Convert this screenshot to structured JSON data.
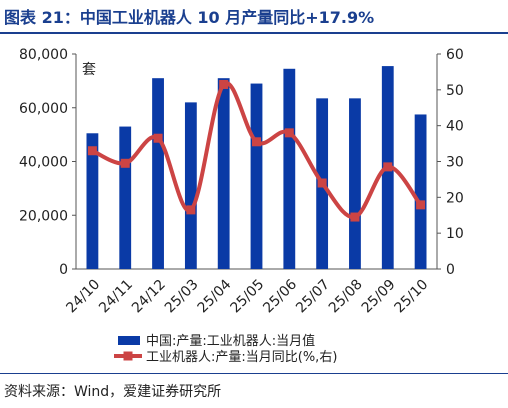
{
  "header": {
    "title": "图表 21：中国工业机器人 10 月产量同比+17.9%"
  },
  "footer": {
    "source": "资料来源：Wind，爱建证券研究所"
  },
  "chart_data": {
    "type": "bar",
    "unit_label": "套",
    "categories": [
      "24/10",
      "24/11",
      "24/12",
      "25/03",
      "25/04",
      "25/05",
      "25/06",
      "25/07",
      "25/08",
      "25/09",
      "25/10"
    ],
    "y_left": {
      "lim": [
        0,
        80000
      ],
      "ticks": [
        "0",
        "20,000",
        "40,000",
        "60,000",
        "80,000"
      ],
      "tick_values": [
        0,
        20000,
        40000,
        60000,
        80000
      ]
    },
    "y_right": {
      "lim": [
        0,
        60
      ],
      "ticks": [
        "0",
        "10",
        "20",
        "30",
        "40",
        "50",
        "60"
      ],
      "tick_values": [
        0,
        10,
        20,
        30,
        40,
        50,
        60
      ]
    },
    "series": [
      {
        "name": "中国:产量:工业机器人:当月值",
        "kind": "bar",
        "axis": "left",
        "color": "#0a3aa6",
        "values": [
          50500,
          53000,
          71000,
          62000,
          71000,
          69000,
          74500,
          63500,
          63500,
          75500,
          57500
        ]
      },
      {
        "name": "工业机器人:产量:当月同比(%,右)",
        "kind": "line",
        "axis": "right",
        "color": "#cc4444",
        "values": [
          33,
          29.5,
          36.5,
          16.5,
          51.5,
          35.5,
          38,
          24,
          14.5,
          28.5,
          17.9
        ]
      }
    ],
    "legend_position": "bottom",
    "grid": false
  }
}
